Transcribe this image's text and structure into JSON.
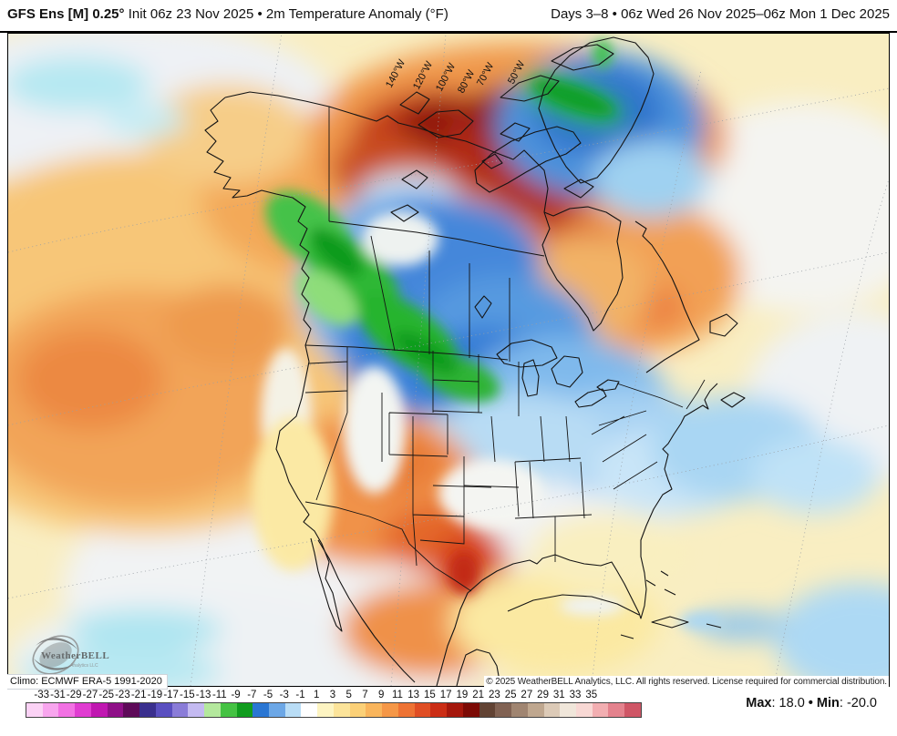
{
  "header": {
    "left_bold": "GFS Ens [M] 0.25°",
    "left_rest": " Init 06z 23 Nov 2025 • 2m Temperature Anomaly (°F)",
    "right": "Days 3–8 • 06z Wed 26 Nov 2025–06z Mon 1 Dec 2025"
  },
  "map": {
    "lon_labels": [
      "140°W",
      "120°W",
      "100°W",
      "80°W",
      "70°W",
      "50°W"
    ],
    "logo": {
      "line1": "WeatherBELL",
      "line2": "Analytics LLC"
    }
  },
  "footer": {
    "climo": "Climo: ECMWF ERA-5 1991-2020",
    "copyright": "© 2025 WeatherBELL Analytics, LLC. All rights reserved. License required for commercial distribution."
  },
  "colorbar": {
    "tick_labels": [
      "-33",
      "-31",
      "-29",
      "-27",
      "-25",
      "-23",
      "-21",
      "-19",
      "-17",
      "-15",
      "-13",
      "-11",
      "-9",
      "-7",
      "-5",
      "-3",
      "-1",
      "1",
      "3",
      "5",
      "7",
      "9",
      "11",
      "13",
      "15",
      "17",
      "19",
      "21",
      "23",
      "25",
      "27",
      "29",
      "31",
      "33",
      "35"
    ],
    "colors": [
      "#fbd2f5",
      "#f8a5ee",
      "#f271e3",
      "#e03cd1",
      "#c017b1",
      "#8f1088",
      "#5e0a59",
      "#3a2f8e",
      "#5a4fc0",
      "#8a7cd8",
      "#c4baf1",
      "#b4e89d",
      "#45c243",
      "#119c1e",
      "#2a76d3",
      "#6ca7e6",
      "#b9ddf6",
      "#ffffff",
      "#fdf4c2",
      "#fce49a",
      "#fbd077",
      "#f9b55c",
      "#f59747",
      "#ee7334",
      "#e04e24",
      "#cb2d15",
      "#a5170c",
      "#7c0a05",
      "#624334",
      "#816253",
      "#a08571",
      "#bfa78f",
      "#dccab7",
      "#f0e6da",
      "#f8d8d4",
      "#f2aeb1",
      "#e4828d",
      "#cf5666"
    ]
  },
  "stats": {
    "max_label": "Max",
    "max_value": ": 18.0",
    "bullet": " • ",
    "min_label": "Min",
    "min_value": ": -20.0"
  }
}
